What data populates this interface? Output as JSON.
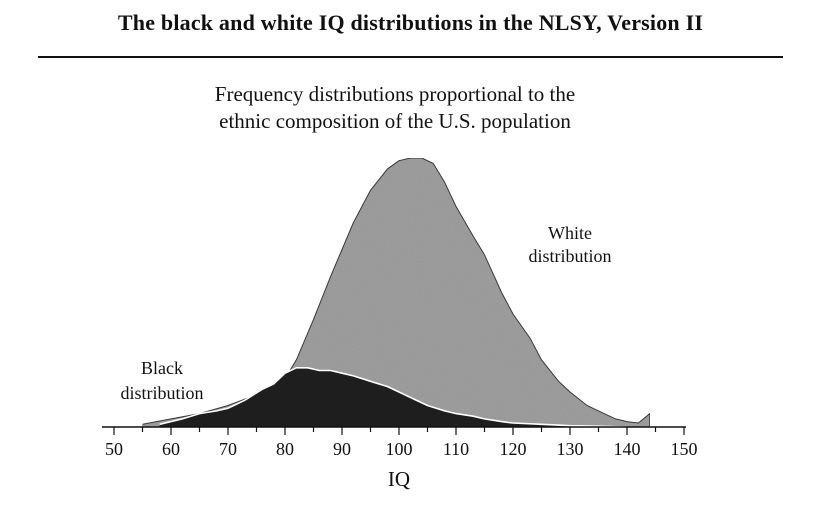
{
  "page": {
    "title": "The black and white IQ distributions in the NLSY, Version II"
  },
  "chart_data": {
    "type": "area",
    "subtitle_lines": [
      "Frequency distributions proportional to the",
      "ethnic composition of the U.S. population"
    ],
    "xlabel": "IQ",
    "ylabel": "",
    "xlim": [
      50,
      150
    ],
    "ylim": [
      0,
      1
    ],
    "x_ticks": [
      50,
      60,
      70,
      80,
      90,
      100,
      110,
      120,
      130,
      140,
      150
    ],
    "grid": false,
    "series": [
      {
        "name": "White distribution",
        "label_lines": [
          "White",
          "distribution"
        ],
        "color": "#a3a3a3",
        "x": [
          55,
          60,
          65,
          70,
          75,
          80,
          82,
          85,
          88,
          90,
          92,
          95,
          98,
          100,
          102,
          104,
          106,
          108,
          110,
          113,
          115,
          118,
          120,
          123,
          125,
          128,
          130,
          133,
          135,
          138,
          140,
          142,
          144
        ],
        "y": [
          0.01,
          0.03,
          0.05,
          0.08,
          0.12,
          0.18,
          0.25,
          0.4,
          0.56,
          0.66,
          0.76,
          0.88,
          0.96,
          0.99,
          1.0,
          1.0,
          0.98,
          0.91,
          0.82,
          0.71,
          0.64,
          0.5,
          0.42,
          0.33,
          0.25,
          0.17,
          0.13,
          0.08,
          0.06,
          0.03,
          0.02,
          0.015,
          0.05
        ]
      },
      {
        "name": "Black distribution",
        "label_lines": [
          "Black",
          "distribution"
        ],
        "color": "#1e1e1e",
        "x": [
          58,
          62,
          65,
          68,
          70,
          73,
          76,
          78,
          80,
          82,
          84,
          86,
          88,
          90,
          92,
          95,
          98,
          100,
          103,
          105,
          108,
          110,
          113,
          115,
          118,
          120,
          125,
          130,
          135,
          140
        ],
        "y": [
          0.01,
          0.03,
          0.05,
          0.06,
          0.07,
          0.1,
          0.14,
          0.16,
          0.2,
          0.22,
          0.22,
          0.21,
          0.21,
          0.2,
          0.19,
          0.17,
          0.15,
          0.13,
          0.1,
          0.08,
          0.06,
          0.05,
          0.04,
          0.03,
          0.02,
          0.015,
          0.01,
          0.005,
          0.003,
          0.0
        ]
      }
    ]
  }
}
